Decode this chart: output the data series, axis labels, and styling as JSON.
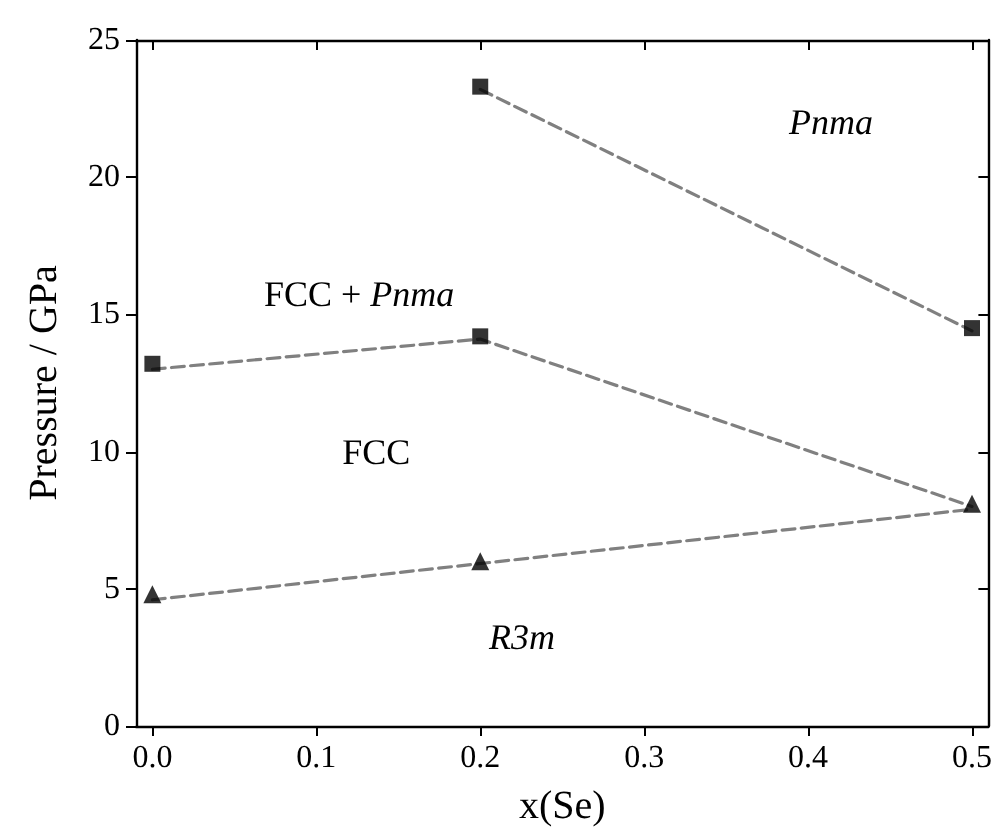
{
  "chart_data": {
    "type": "scatter",
    "xlabel": "x(Se)",
    "ylabel": "Pressure / GPa",
    "annotations": [
      "Pnma",
      "FCC + Pnma",
      "FCC",
      "R3m"
    ],
    "xlim": [
      -0.01,
      0.51
    ],
    "ylim": [
      0,
      25
    ],
    "xticks": [
      {
        "value": 0,
        "label": "0.0"
      },
      {
        "value": 0.1,
        "label": "0.1"
      },
      {
        "value": 0.2,
        "label": "0.2"
      },
      {
        "value": 0.3,
        "label": "0.3"
      },
      {
        "value": 0.4,
        "label": "0.4"
      },
      {
        "value": 0.5,
        "label": "0.5"
      }
    ],
    "yticks": [
      0,
      5,
      10,
      15,
      20,
      25
    ],
    "grid": false,
    "series": [
      {
        "type": "line",
        "x": [
          0,
          0.5
        ],
        "values": [
          4.6,
          7.9
        ],
        "color": "#808080",
        "marker": "none",
        "line_style": "dashed"
      },
      {
        "type": "line",
        "x": [
          0,
          0.2,
          0.5
        ],
        "values": [
          13.0,
          14.1,
          8.0
        ],
        "color": "#808080",
        "marker": "none",
        "line_style": "dashed"
      },
      {
        "type": "line",
        "x": [
          0.2,
          0.5
        ],
        "values": [
          23.2,
          14.4
        ],
        "color": "#808080",
        "marker": "none",
        "line_style": "dashed"
      },
      {
        "x": [
          0,
          0.2,
          0.2,
          0.5
        ],
        "values": [
          13.2,
          14.2,
          23.3,
          14.5
        ],
        "color": "#000000",
        "marker": "square"
      },
      {
        "x": [
          0,
          0.2,
          0.5
        ],
        "values": [
          4.8,
          6.0,
          8.1
        ],
        "color": "#000000",
        "marker": "triangle"
      }
    ]
  }
}
